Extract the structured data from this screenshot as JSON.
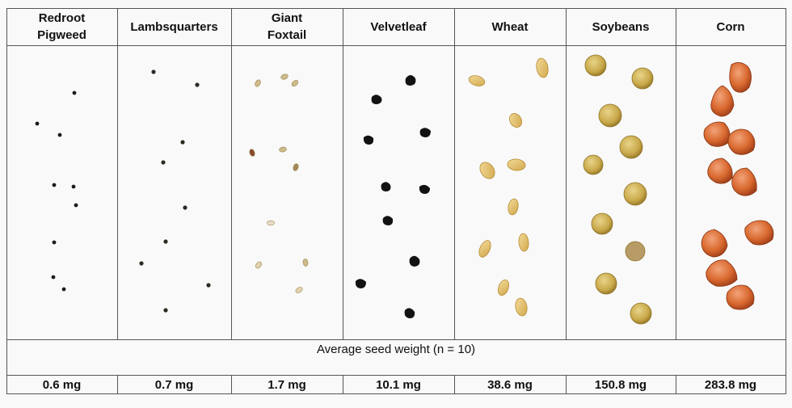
{
  "columns": [
    {
      "name": "Redroot\nPigweed",
      "weight": "0.6 mg"
    },
    {
      "name": "Lambsquarters",
      "weight": "0.7 mg"
    },
    {
      "name": "Giant\nFoxtail",
      "weight": "1.7 mg"
    },
    {
      "name": "Velvetleaf",
      "weight": "10.1 mg"
    },
    {
      "name": "Wheat",
      "weight": "38.6 mg"
    },
    {
      "name": "Soybeans",
      "weight": "150.8 mg"
    },
    {
      "name": "Corn",
      "weight": "283.8 mg"
    }
  ],
  "caption": "Average seed weight (n = 10)"
}
